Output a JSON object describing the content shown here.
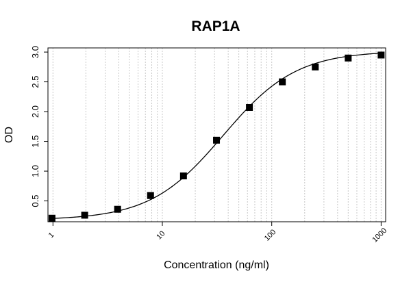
{
  "chart_data": {
    "type": "scatter",
    "title": "RAP1A",
    "xlabel": "Concentration (ng/ml)",
    "ylabel": "OD",
    "x_scale": "log",
    "xlim": [
      0.9,
      1100
    ],
    "ylim": [
      0.15,
      3.07
    ],
    "grid": "vertical dotted lines at log-decade subdivisions",
    "x_ticks": [
      1,
      10,
      100,
      1000
    ],
    "x_tick_labels": [
      "1",
      "10",
      "100",
      "1000"
    ],
    "y_ticks": [
      0.5,
      1.0,
      1.5,
      2.0,
      2.5,
      3.0
    ],
    "y_tick_labels": [
      "0.5",
      "1.0",
      "1.5",
      "2.0",
      "2.5",
      "3.0"
    ],
    "series": [
      {
        "marker": "square",
        "color": "#000000",
        "x": [
          0.98,
          1.95,
          3.9,
          7.8,
          15.6,
          31.25,
          62.5,
          125,
          250,
          500,
          1000
        ],
        "y": [
          0.21,
          0.26,
          0.36,
          0.59,
          0.92,
          1.52,
          2.07,
          2.5,
          2.75,
          2.9,
          2.95
        ]
      }
    ],
    "curve": {
      "type": "4PL",
      "bottom": 0.18,
      "top": 3.02,
      "ec50": 36,
      "hill": 1.3,
      "color": "#000000"
    }
  }
}
